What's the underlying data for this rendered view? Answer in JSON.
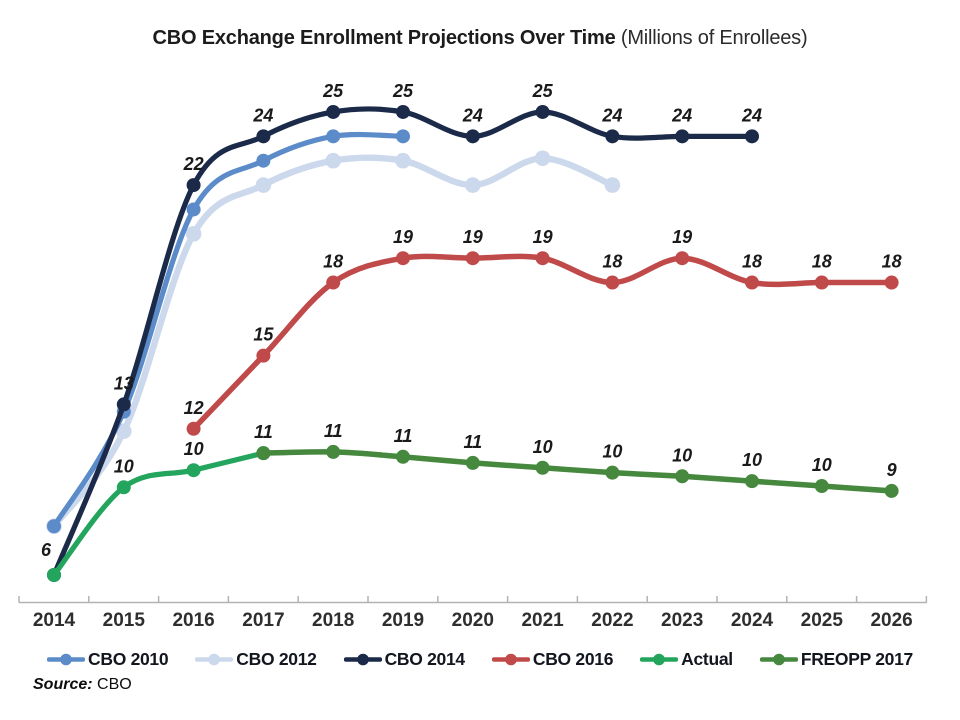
{
  "title": {
    "main": "CBO Exchange Enrollment Projections Over Time",
    "suffix": " (Millions of Enrollees)"
  },
  "source": {
    "label": "Source:",
    "value": " CBO"
  },
  "x_axis": {
    "years": [
      "2014",
      "2015",
      "2016",
      "2017",
      "2018",
      "2019",
      "2020",
      "2021",
      "2022",
      "2023",
      "2024",
      "2025",
      "2026"
    ]
  },
  "chart_data": {
    "type": "line",
    "title": "CBO Exchange Enrollment Projections Over Time (Millions of Enrollees)",
    "xlabel": "",
    "ylabel": "Millions of Enrollees",
    "x_categories": [
      2014,
      2015,
      2016,
      2017,
      2018,
      2019,
      2020,
      2021,
      2022,
      2023,
      2024,
      2025,
      2026
    ],
    "y_implied_range": [
      6,
      25
    ],
    "grid": false,
    "y_axis_shown": false,
    "legend_position": "bottom",
    "series": [
      {
        "name": "CBO 2010",
        "color": "#5b8bc9",
        "start_year": 2014,
        "values": [
          8,
          12.7,
          21,
          23,
          24,
          24
        ],
        "labels": [
          "",
          "",
          "",
          "",
          "",
          ""
        ]
      },
      {
        "name": "CBO 2012",
        "color": "#ccd9ec",
        "start_year": 2014,
        "values": [
          8,
          11.9,
          20,
          22,
          23,
          23,
          22,
          23.1,
          22
        ],
        "labels": [
          "",
          "",
          "",
          "",
          "",
          "",
          "",
          "",
          ""
        ]
      },
      {
        "name": "CBO 2014",
        "color": "#1b2a49",
        "start_year": 2014,
        "values": [
          6,
          13,
          22,
          24,
          25,
          25,
          24,
          25,
          24,
          24,
          24
        ],
        "labels": [
          "",
          "13",
          "22",
          "24",
          "25",
          "25",
          "24",
          "25",
          "24",
          "24",
          "24"
        ]
      },
      {
        "name": "CBO 2016",
        "color": "#c04a4a",
        "start_year": 2016,
        "values": [
          12,
          15,
          18,
          19,
          19,
          19,
          18,
          19,
          18,
          18,
          18
        ],
        "labels": [
          "12",
          "15",
          "18",
          "19",
          "19",
          "19",
          "18",
          "19",
          "18",
          "18",
          "18"
        ]
      },
      {
        "name": "Actual",
        "color": "#23a55d",
        "start_year": 2014,
        "values": [
          6,
          9.6,
          10.3,
          11
        ],
        "labels": [
          "6",
          "10",
          "10",
          ""
        ],
        "label_dx": [
          -8,
          0,
          0,
          0
        ],
        "label_dy": [
          -4,
          0,
          0,
          0
        ]
      },
      {
        "name": "FREOPP 2017",
        "color": "#45883e",
        "start_year": 2017,
        "values": [
          11,
          11.05,
          10.85,
          10.6,
          10.4,
          10.2,
          10.05,
          9.85,
          9.65,
          9.45
        ],
        "labels": [
          "11",
          "11",
          "11",
          "11",
          "10",
          "10",
          "10",
          "10",
          "10",
          "9"
        ]
      }
    ]
  },
  "legend": {
    "items": [
      {
        "label": "CBO 2010",
        "color": "#5b8bc9"
      },
      {
        "label": "CBO 2012",
        "color": "#ccd9ec"
      },
      {
        "label": "CBO 2014",
        "color": "#1b2a49"
      },
      {
        "label": "CBO 2016",
        "color": "#c04a4a"
      },
      {
        "label": "Actual",
        "color": "#23a55d"
      },
      {
        "label": "FREOPP 2017",
        "color": "#45883e"
      }
    ]
  },
  "style_colors": {
    "axis_line": "#b3b3b3",
    "year_label": "#2e2e2e",
    "data_label": "#1a1a1a"
  }
}
